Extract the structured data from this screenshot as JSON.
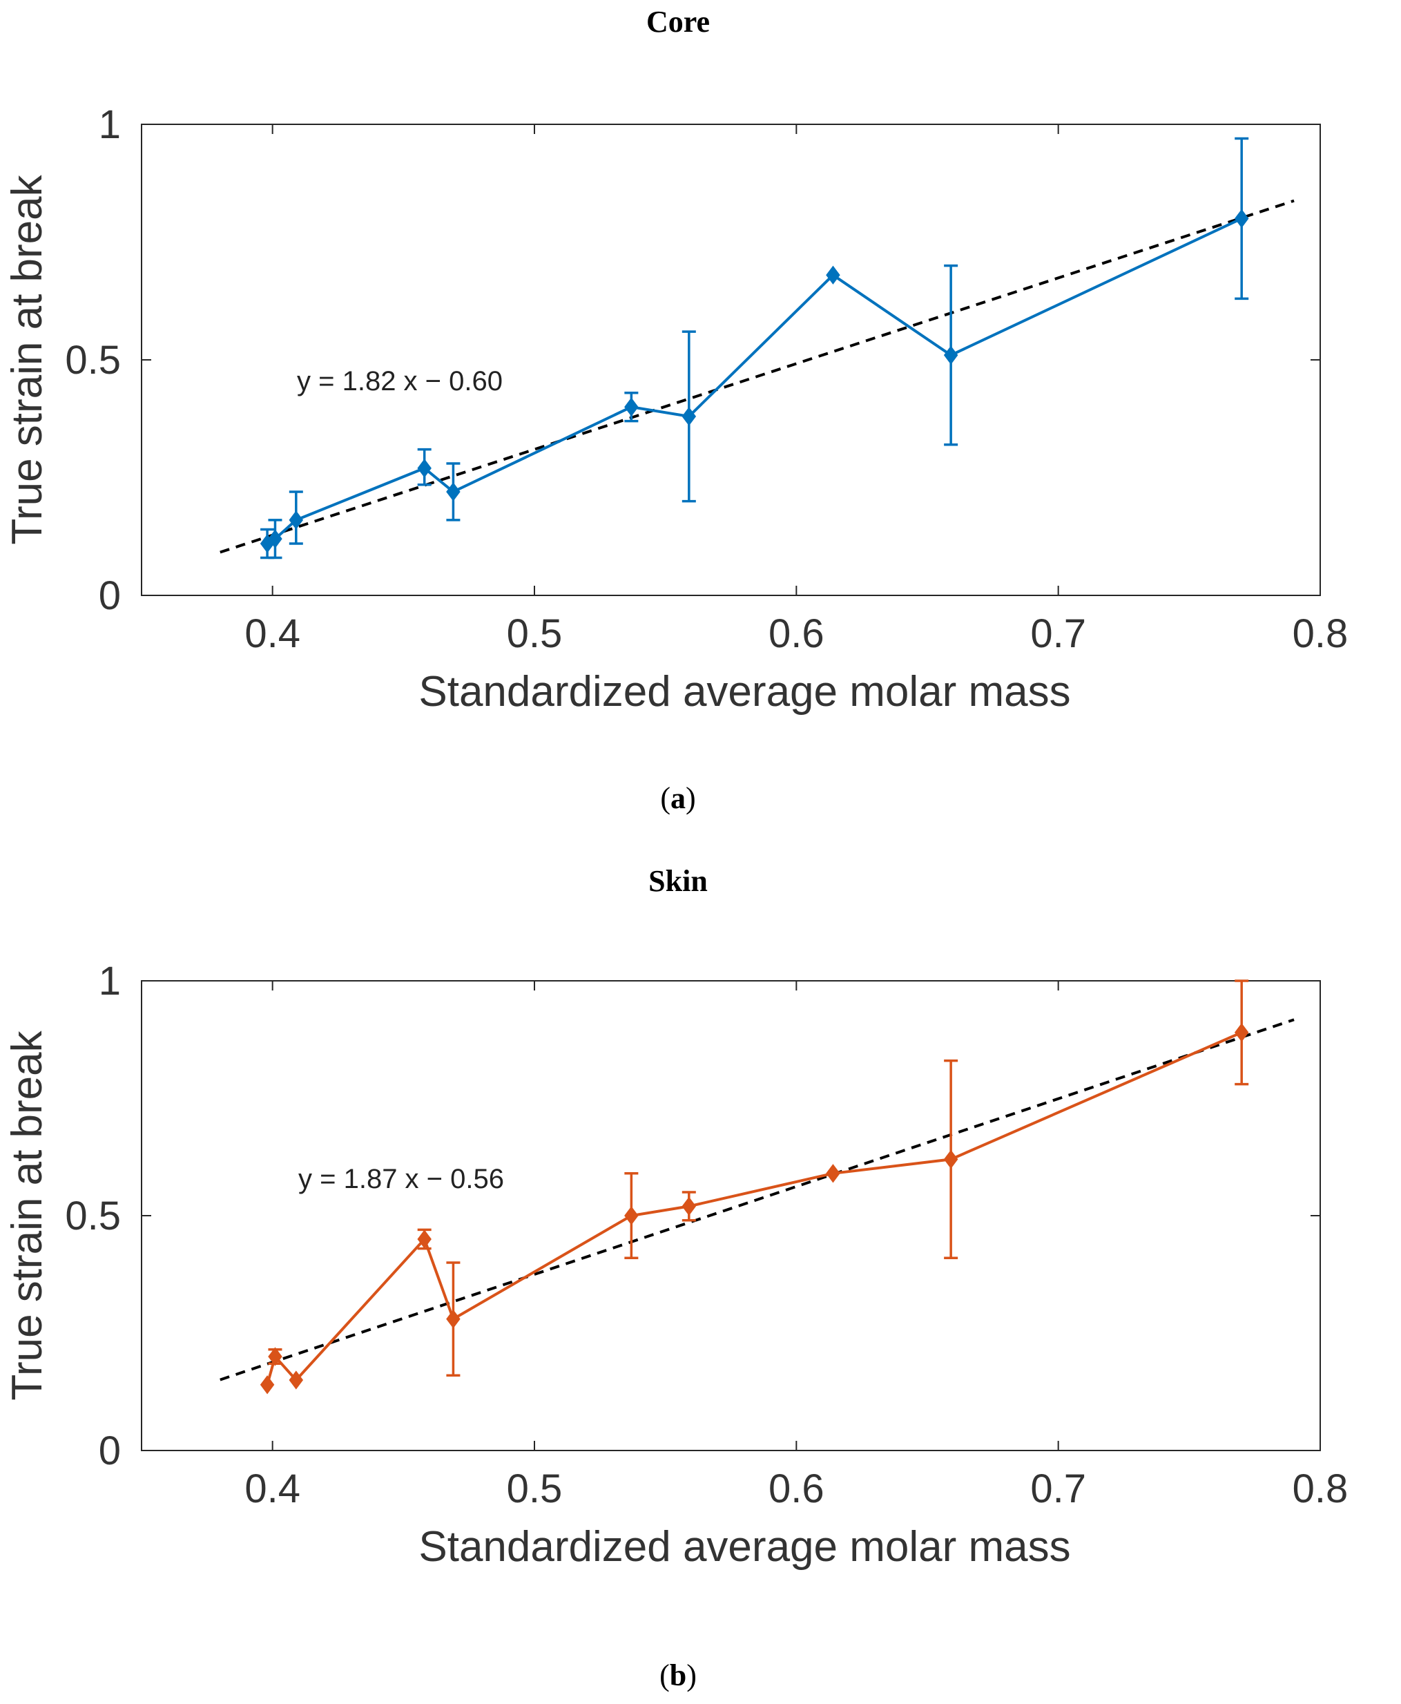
{
  "figure": {
    "panels": [
      {
        "title": "Core",
        "caption_letter": "a",
        "equation": "y = 1.82 x − 0.60",
        "chart_data": {
          "type": "line",
          "title": "Core",
          "xlabel": "Standardized average molar mass",
          "ylabel": "True strain at break",
          "xlim": [
            0.35,
            0.8
          ],
          "ylim": [
            0,
            1
          ],
          "xticks": [
            "0.4",
            "0.5",
            "0.6",
            "0.7",
            "0.8"
          ],
          "xtick_values": [
            0.4,
            0.5,
            0.6,
            0.7,
            0.8
          ],
          "yticks": [
            "0",
            "0.5",
            "1"
          ],
          "ytick_values": [
            0,
            0.5,
            1
          ],
          "grid": false,
          "series": [
            {
              "name": "Core",
              "color": "#0072BD",
              "marker": "diamond",
              "x": [
                0.398,
                0.401,
                0.409,
                0.458,
                0.469,
                0.537,
                0.559,
                0.614,
                0.659,
                0.77
              ],
              "y": [
                0.11,
                0.12,
                0.16,
                0.27,
                0.22,
                0.4,
                0.38,
                0.68,
                0.51,
                0.8
              ],
              "err_low": [
                0.03,
                0.04,
                0.05,
                0.035,
                0.06,
                0.03,
                0.18,
                0.0,
                0.19,
                0.17
              ],
              "err_high": [
                0.03,
                0.04,
                0.06,
                0.04,
                0.06,
                0.03,
                0.18,
                0.0,
                0.19,
                0.17
              ]
            }
          ],
          "fit_line": {
            "slope": 1.82,
            "intercept": -0.6,
            "x_range": [
              0.38,
              0.79
            ],
            "color": "#000000",
            "style": "dashed"
          }
        }
      },
      {
        "title": "Skin",
        "caption_letter": "b",
        "equation": "y = 1.87 x − 0.56",
        "chart_data": {
          "type": "line",
          "title": "Skin",
          "xlabel": "Standardized average molar mass",
          "ylabel": "True strain at break",
          "xlim": [
            0.35,
            0.8
          ],
          "ylim": [
            0,
            1
          ],
          "xticks": [
            "0.4",
            "0.5",
            "0.6",
            "0.7",
            "0.8"
          ],
          "xtick_values": [
            0.4,
            0.5,
            0.6,
            0.7,
            0.8
          ],
          "yticks": [
            "0",
            "0.5",
            "1"
          ],
          "ytick_values": [
            0,
            0.5,
            1
          ],
          "grid": false,
          "series": [
            {
              "name": "Skin",
              "color": "#D95319",
              "marker": "diamond",
              "x": [
                0.398,
                0.401,
                0.409,
                0.458,
                0.469,
                0.537,
                0.559,
                0.614,
                0.659,
                0.77
              ],
              "y": [
                0.14,
                0.2,
                0.15,
                0.45,
                0.28,
                0.5,
                0.52,
                0.59,
                0.62,
                0.89
              ],
              "err_low": [
                0.0,
                0.015,
                0.0,
                0.02,
                0.12,
                0.09,
                0.03,
                0.0,
                0.21,
                0.11
              ],
              "err_high": [
                0.0,
                0.015,
                0.0,
                0.02,
                0.12,
                0.09,
                0.03,
                0.0,
                0.21,
                0.11
              ]
            }
          ],
          "fit_line": {
            "slope": 1.87,
            "intercept": -0.56,
            "x_range": [
              0.38,
              0.79
            ],
            "color": "#000000",
            "style": "dashed"
          }
        }
      }
    ]
  }
}
